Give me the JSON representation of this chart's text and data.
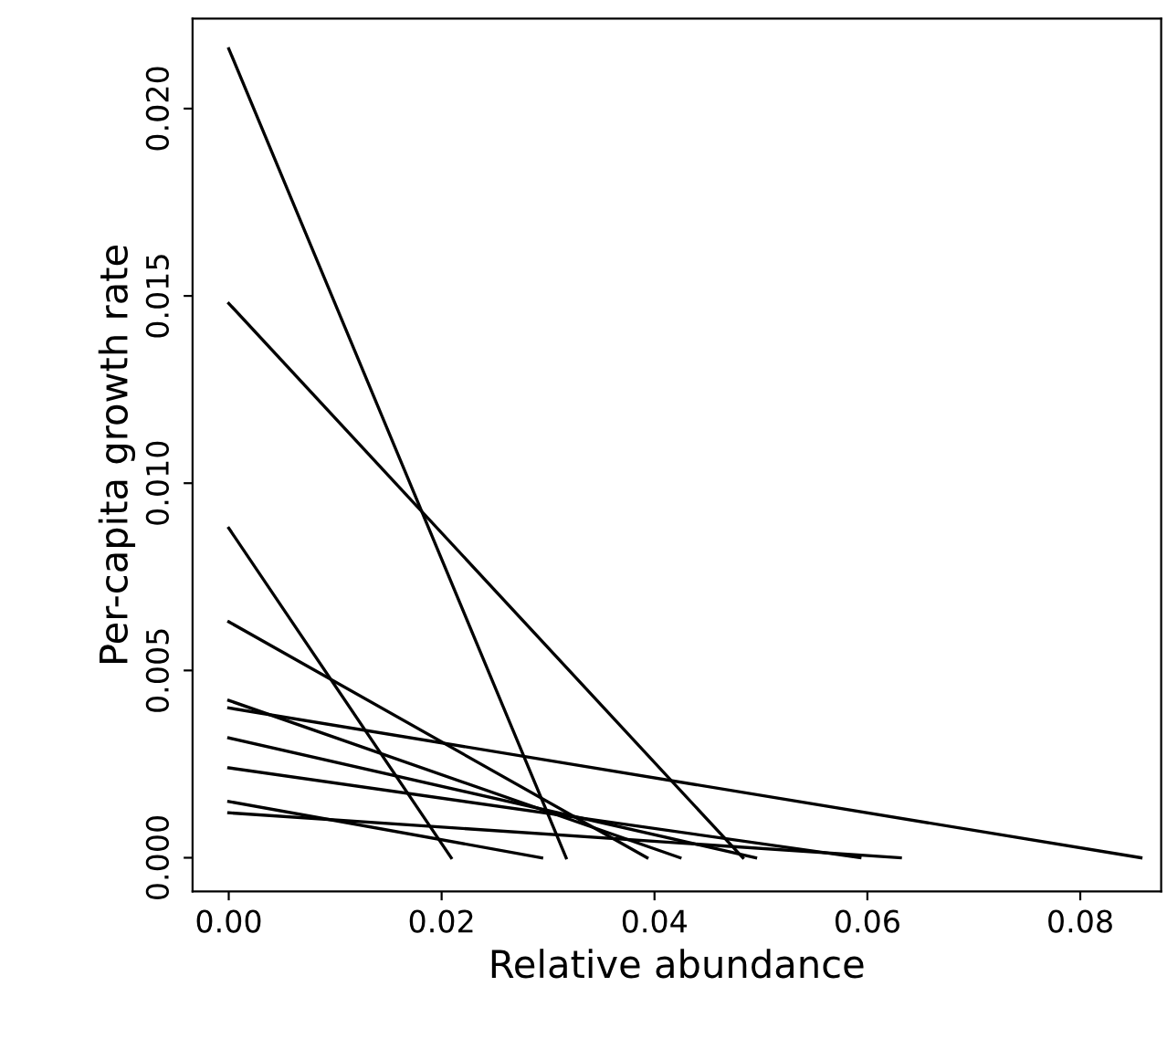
{
  "chart_data": {
    "type": "line",
    "xlabel": "Relative abundance",
    "ylabel": "Per-capita growth rate",
    "xlim": [
      -0.0034,
      0.0876
    ],
    "ylim": [
      -0.0009,
      0.0224
    ],
    "xticks": [
      {
        "value": 0,
        "label": "0.00"
      },
      {
        "value": 0.02,
        "label": "0.02"
      },
      {
        "value": 0.04,
        "label": "0.04"
      },
      {
        "value": 0.06,
        "label": "0.06"
      },
      {
        "value": 0.08,
        "label": "0.08"
      }
    ],
    "yticks": [
      {
        "value": 0,
        "label": "0.000"
      },
      {
        "value": 0.005,
        "label": "0.005"
      },
      {
        "value": 0.01,
        "label": "0.010"
      },
      {
        "value": 0.015,
        "label": "0.015"
      },
      {
        "value": 0.02,
        "label": "0.020"
      }
    ],
    "grid": false,
    "marker": "none",
    "line_style": "solid",
    "series": [
      {
        "color": "#000000",
        "x": [
          0,
          0.0317
        ],
        "values": [
          0.0216,
          0
        ]
      },
      {
        "color": "#000000",
        "x": [
          0,
          0.0483
        ],
        "values": [
          0.0148,
          0
        ]
      },
      {
        "color": "#000000",
        "x": [
          0,
          0.0209
        ],
        "values": [
          0.0088,
          0
        ]
      },
      {
        "color": "#000000",
        "x": [
          0,
          0.0393
        ],
        "values": [
          0.0063,
          0
        ]
      },
      {
        "color": "#000000",
        "x": [
          0,
          0.0424
        ],
        "values": [
          0.0042,
          0
        ]
      },
      {
        "color": "#000000",
        "x": [
          0,
          0.0857
        ],
        "values": [
          0.004,
          0
        ]
      },
      {
        "color": "#000000",
        "x": [
          0,
          0.0495
        ],
        "values": [
          0.0032,
          0
        ]
      },
      {
        "color": "#000000",
        "x": [
          0,
          0.0593
        ],
        "values": [
          0.0024,
          0
        ]
      },
      {
        "color": "#000000",
        "x": [
          0,
          0.0294
        ],
        "values": [
          0.0015,
          0
        ]
      },
      {
        "color": "#000000",
        "x": [
          0,
          0.0631
        ],
        "values": [
          0.0012,
          0
        ]
      }
    ]
  }
}
